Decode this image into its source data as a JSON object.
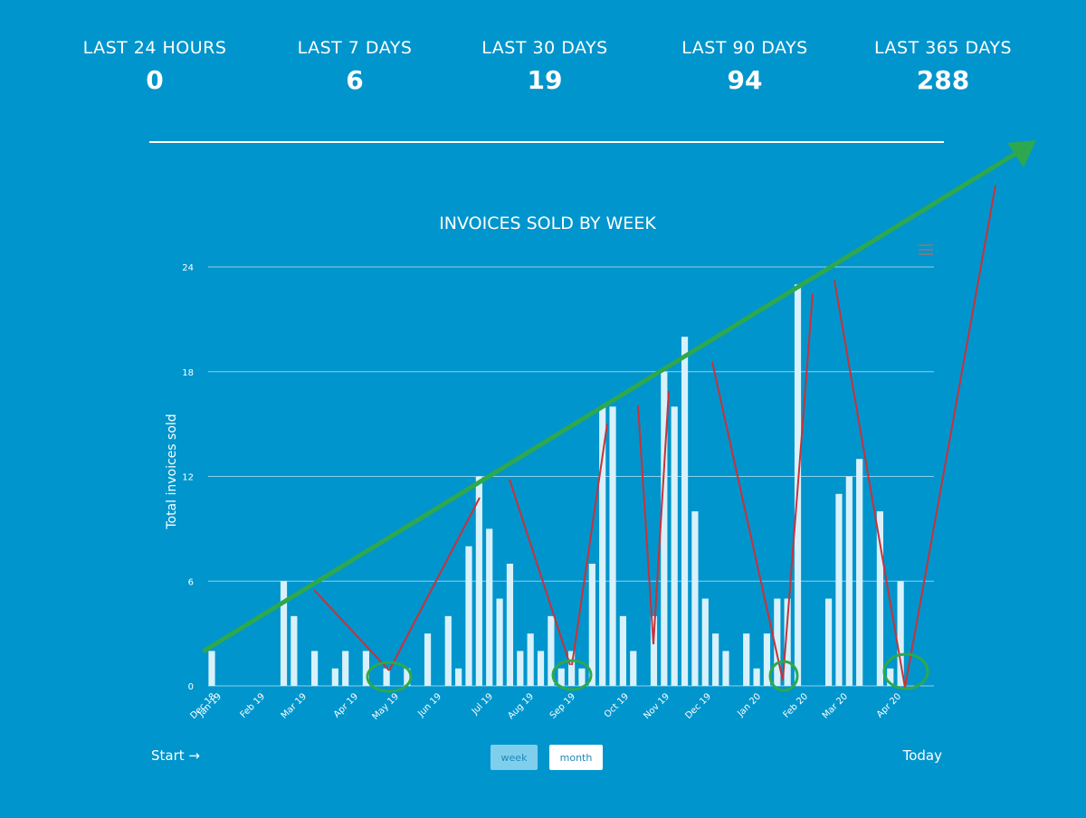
{
  "stats": [
    {
      "label": "LAST 24 HOURS",
      "value": "0"
    },
    {
      "label": "LAST 7 DAYS",
      "value": "6"
    },
    {
      "label": "LAST 30 DAYS",
      "value": "19"
    },
    {
      "label": "LAST 90 DAYS",
      "value": "94"
    },
    {
      "label": "LAST 365 DAYS",
      "value": "288"
    }
  ],
  "controls": {
    "start_label": "Start →",
    "today_label": "Today",
    "week_label": "week",
    "month_label": "month"
  },
  "colors": {
    "background": "#0095cc",
    "bar": "#d8f1fa",
    "grid": "#8fd0ea",
    "trend_arrow": "#2ea84f",
    "annotation_lines": "#c8323a",
    "highlight_circles": "#2ea84f"
  },
  "chart_data": {
    "type": "bar",
    "title": "INVOICES SOLD BY WEEK",
    "ylabel": "Total invoices sold",
    "xlabel": "",
    "ylim": [
      0,
      24
    ],
    "yticks": [
      0,
      6,
      12,
      18,
      24
    ],
    "grid": true,
    "x_tick_labels": [
      "Dec 18",
      "Jan 19",
      "Feb 19",
      "Mar 19",
      "Apr 19",
      "May 19",
      "Jun 19",
      "Jul 19",
      "Aug 19",
      "Sep 19",
      "Oct 19",
      "Nov 19",
      "Dec 19",
      "Jan 20",
      "Feb 20",
      "Mar 20",
      "Apr 20"
    ],
    "values": [
      2,
      0,
      0,
      0,
      0,
      0,
      0,
      6,
      4,
      0,
      2,
      0,
      1,
      2,
      0,
      2,
      0,
      1,
      0,
      1,
      0,
      3,
      0,
      4,
      1,
      8,
      12,
      9,
      5,
      7,
      2,
      3,
      2,
      4,
      1,
      2,
      1,
      7,
      16,
      16,
      4,
      2,
      0,
      4,
      18,
      16,
      20,
      10,
      5,
      3,
      2,
      0,
      3,
      1,
      3,
      5,
      5,
      23,
      0,
      0,
      5,
      11,
      12,
      13,
      0,
      10,
      1,
      6
    ],
    "annotations": {
      "trend_arrow": "rising trend arrow from start to today",
      "zigzag_lines": "red lines connecting troughs and peaks",
      "circled_troughs": [
        "May 19",
        "Sep 19",
        "Jan 20",
        "Apr 20"
      ]
    }
  }
}
